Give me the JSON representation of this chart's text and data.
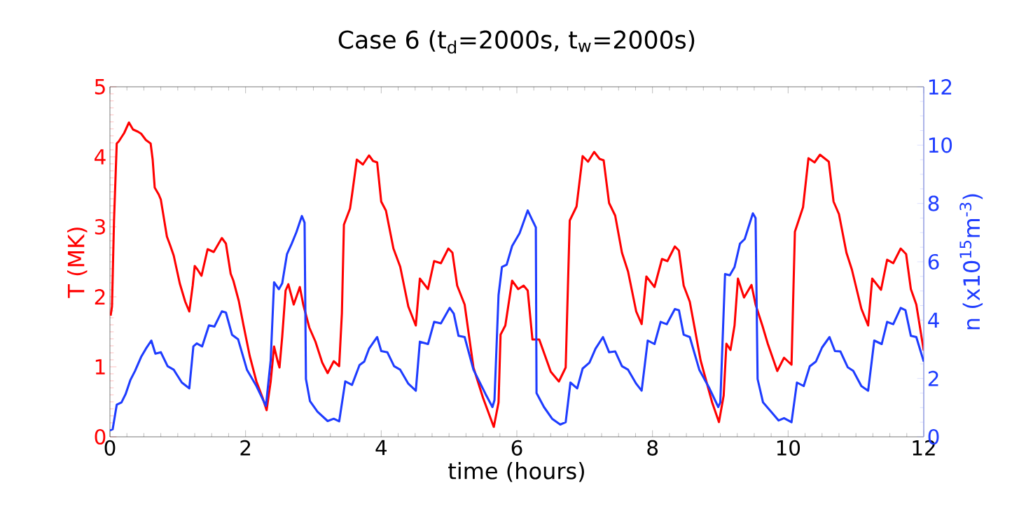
{
  "chart_data": {
    "type": "line",
    "title": "Case 6 (t$_{d}$=2000s, t$_{w}$=2000s)",
    "xlabel": "time (hours)",
    "ylabel": "T (MK)",
    "y2label": "n (x10$^{15}$m$^{-3}$)",
    "xlim": [
      0,
      12
    ],
    "ylim": [
      0,
      5
    ],
    "y2lim": [
      0,
      12
    ],
    "xticks": [
      0,
      2,
      4,
      6,
      8,
      10,
      12
    ],
    "yticks": [
      0,
      1,
      2,
      3,
      4,
      5
    ],
    "y2ticks": [
      0,
      2,
      4,
      6,
      8,
      10,
      12
    ],
    "grid": false,
    "series": [
      {
        "color": "#ff0000",
        "axis": "y",
        "x": [
          0.01,
          0.03,
          0.06,
          0.1,
          0.13,
          0.21,
          0.28,
          0.34,
          0.41,
          0.46,
          0.53,
          0.6,
          0.63,
          0.66,
          0.72,
          0.75,
          0.84,
          0.89,
          0.94,
          1.03,
          1.11,
          1.17,
          1.22,
          1.25,
          1.29,
          1.35,
          1.44,
          1.53,
          1.65,
          1.71,
          1.78,
          1.82,
          1.9,
          1.97,
          2.06,
          2.16,
          2.25,
          2.31,
          2.37,
          2.42,
          2.47,
          2.5,
          2.54,
          2.59,
          2.63,
          2.71,
          2.8,
          2.85,
          2.94,
          3.03,
          3.13,
          3.21,
          3.3,
          3.38,
          3.42,
          3.45,
          3.54,
          3.57,
          3.64,
          3.73,
          3.82,
          3.88,
          3.94,
          4.0,
          4.07,
          4.18,
          4.28,
          4.4,
          4.51,
          4.57,
          4.69,
          4.78,
          4.88,
          4.99,
          5.05,
          5.12,
          5.23,
          5.36,
          5.5,
          5.66,
          5.73,
          5.76,
          5.83,
          5.93,
          6.02,
          6.1,
          6.16,
          6.23,
          6.33,
          6.5,
          6.62,
          6.72,
          6.78,
          6.88,
          6.97,
          7.05,
          7.14,
          7.22,
          7.28,
          7.36,
          7.45,
          7.55,
          7.64,
          7.76,
          7.84,
          7.91,
          8.03,
          8.14,
          8.22,
          8.33,
          8.39,
          8.46,
          8.55,
          8.71,
          8.88,
          8.98,
          9.05,
          9.09,
          9.15,
          9.21,
          9.26,
          9.35,
          9.46,
          9.52,
          9.62,
          9.7,
          9.84,
          9.94,
          10.05,
          10.1,
          10.22,
          10.3,
          10.39,
          10.47,
          10.6,
          10.67,
          10.75,
          10.86,
          10.94,
          11.08,
          11.18,
          11.24,
          11.37,
          11.46,
          11.55,
          11.66,
          11.74,
          11.81,
          11.89,
          12.0
        ],
        "values": [
          1.73,
          1.86,
          3.09,
          4.19,
          4.22,
          4.34,
          4.49,
          4.39,
          4.36,
          4.33,
          4.24,
          4.19,
          3.96,
          3.56,
          3.46,
          3.39,
          2.86,
          2.73,
          2.59,
          2.19,
          1.93,
          1.79,
          2.16,
          2.44,
          2.39,
          2.3,
          2.68,
          2.64,
          2.84,
          2.76,
          2.33,
          2.23,
          1.94,
          1.59,
          1.16,
          0.79,
          0.56,
          0.38,
          0.79,
          1.29,
          1.09,
          0.99,
          1.43,
          2.09,
          2.18,
          1.89,
          2.14,
          1.89,
          1.56,
          1.36,
          1.06,
          0.91,
          1.08,
          1.01,
          1.76,
          3.03,
          3.26,
          3.46,
          3.96,
          3.89,
          4.02,
          3.94,
          3.92,
          3.36,
          3.23,
          2.69,
          2.43,
          1.86,
          1.59,
          2.26,
          2.11,
          2.51,
          2.48,
          2.69,
          2.63,
          2.16,
          1.89,
          0.99,
          0.56,
          0.14,
          0.49,
          1.46,
          1.59,
          2.23,
          2.11,
          2.16,
          2.09,
          1.39,
          1.39,
          0.93,
          0.79,
          0.99,
          3.09,
          3.29,
          4.01,
          3.93,
          4.07,
          3.97,
          3.95,
          3.34,
          3.16,
          2.63,
          2.36,
          1.79,
          1.61,
          2.29,
          2.14,
          2.54,
          2.51,
          2.72,
          2.66,
          2.16,
          1.93,
          1.09,
          0.49,
          0.21,
          0.59,
          1.33,
          1.24,
          1.59,
          2.26,
          1.99,
          2.17,
          1.89,
          1.59,
          1.33,
          0.94,
          1.13,
          1.03,
          2.93,
          3.28,
          3.98,
          3.92,
          4.03,
          3.93,
          3.36,
          3.18,
          2.63,
          2.39,
          1.83,
          1.59,
          2.26,
          2.1,
          2.53,
          2.48,
          2.69,
          2.61,
          2.11,
          1.89,
          1.23
        ]
      },
      {
        "color": "#1e3cff",
        "axis": "y2",
        "x": [
          0.0,
          0.04,
          0.1,
          0.17,
          0.23,
          0.3,
          0.37,
          0.46,
          0.53,
          0.61,
          0.67,
          0.75,
          0.85,
          0.94,
          1.06,
          1.17,
          1.23,
          1.28,
          1.36,
          1.46,
          1.54,
          1.65,
          1.71,
          1.8,
          1.89,
          2.02,
          2.16,
          2.3,
          2.37,
          2.42,
          2.49,
          2.54,
          2.61,
          2.68,
          2.75,
          2.83,
          2.87,
          2.89,
          2.95,
          3.06,
          3.21,
          3.3,
          3.38,
          3.47,
          3.57,
          3.68,
          3.75,
          3.82,
          3.94,
          4.0,
          4.09,
          4.19,
          4.28,
          4.4,
          4.51,
          4.57,
          4.69,
          4.78,
          4.88,
          5.01,
          5.07,
          5.14,
          5.23,
          5.36,
          5.54,
          5.64,
          5.67,
          5.73,
          5.78,
          5.85,
          5.93,
          6.04,
          6.16,
          6.23,
          6.28,
          6.29,
          6.4,
          6.52,
          6.64,
          6.72,
          6.79,
          6.89,
          6.97,
          7.07,
          7.16,
          7.27,
          7.36,
          7.45,
          7.55,
          7.64,
          7.76,
          7.84,
          7.93,
          8.03,
          8.12,
          8.21,
          8.33,
          8.39,
          8.46,
          8.55,
          8.69,
          8.84,
          8.97,
          9.0,
          9.07,
          9.14,
          9.21,
          9.29,
          9.36,
          9.48,
          9.52,
          9.55,
          9.63,
          9.75,
          9.86,
          9.94,
          10.05,
          10.13,
          10.23,
          10.32,
          10.41,
          10.5,
          10.61,
          10.69,
          10.77,
          10.88,
          10.96,
          11.08,
          11.18,
          11.27,
          11.38,
          11.46,
          11.55,
          11.66,
          11.73,
          11.81,
          11.89,
          12.0
        ],
        "values": [
          0.22,
          0.26,
          1.1,
          1.18,
          1.46,
          1.94,
          2.26,
          2.74,
          3.02,
          3.3,
          2.85,
          2.9,
          2.42,
          2.3,
          1.86,
          1.66,
          3.1,
          3.2,
          3.1,
          3.82,
          3.78,
          4.3,
          4.26,
          3.5,
          3.34,
          2.3,
          1.74,
          1.06,
          2.62,
          5.3,
          5.06,
          5.26,
          6.26,
          6.62,
          7.02,
          7.57,
          7.34,
          1.98,
          1.22,
          0.86,
          0.54,
          0.62,
          0.53,
          1.9,
          1.78,
          2.46,
          2.58,
          3.02,
          3.42,
          2.94,
          2.9,
          2.42,
          2.3,
          1.82,
          1.58,
          3.26,
          3.18,
          3.94,
          3.89,
          4.42,
          4.22,
          3.46,
          3.42,
          2.3,
          1.46,
          1.02,
          1.26,
          4.86,
          5.82,
          5.9,
          6.54,
          6.98,
          7.76,
          7.42,
          7.18,
          1.5,
          1.02,
          0.62,
          0.42,
          0.5,
          1.86,
          1.66,
          2.34,
          2.54,
          3.02,
          3.42,
          2.9,
          2.93,
          2.42,
          2.3,
          1.82,
          1.58,
          3.3,
          3.18,
          3.94,
          3.86,
          4.38,
          4.34,
          3.5,
          3.42,
          2.3,
          1.66,
          1.02,
          1.18,
          5.58,
          5.54,
          5.82,
          6.62,
          6.78,
          7.66,
          7.5,
          1.98,
          1.18,
          0.86,
          0.56,
          0.64,
          0.5,
          1.86,
          1.74,
          2.42,
          2.58,
          3.06,
          3.42,
          2.94,
          2.93,
          2.38,
          2.26,
          1.74,
          1.58,
          3.3,
          3.18,
          3.94,
          3.86,
          4.42,
          4.34,
          3.46,
          3.42,
          2.58
        ]
      }
    ]
  }
}
